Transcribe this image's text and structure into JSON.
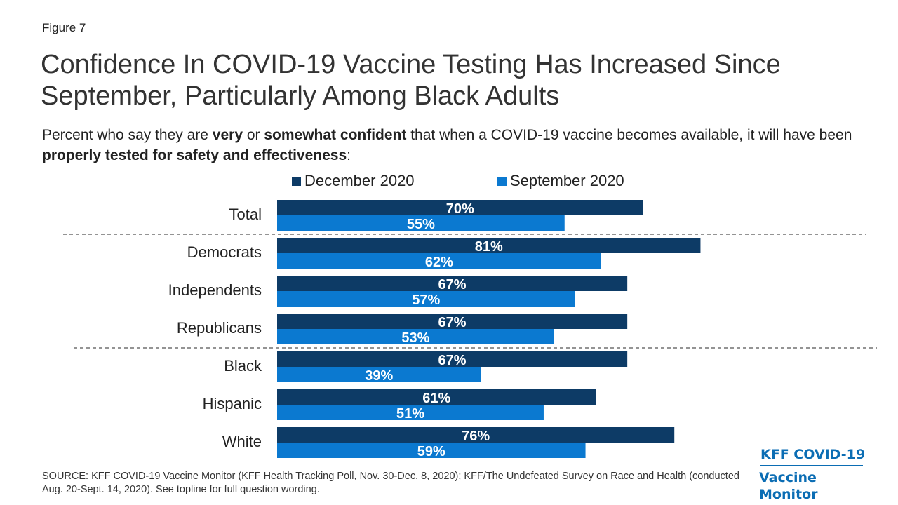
{
  "figure_label": "Figure 7",
  "title": "Confidence In COVID-19 Vaccine Testing Has Increased Since September, Particularly Among Black Adults",
  "subtitle": {
    "p1": "Percent who say they are ",
    "b1": "very",
    "p2": " or ",
    "b2": "somewhat confident",
    "p3": " that when a COVID-19 vaccine becomes available, it will have been ",
    "b3": "properly tested for safety and effectiveness",
    "p4": ":"
  },
  "colors": {
    "december": "#0d3b66",
    "september": "#0b79d0",
    "divider": "#555555"
  },
  "chart_data": {
    "type": "bar",
    "orientation": "horizontal",
    "categories": [
      "Total",
      "Democrats",
      "Independents",
      "Republicans",
      "Black",
      "Hispanic",
      "White"
    ],
    "series": [
      {
        "name": "December 2020",
        "values": [
          70,
          81,
          67,
          67,
          67,
          61,
          76
        ]
      },
      {
        "name": "September 2020",
        "values": [
          55,
          62,
          57,
          53,
          39,
          51,
          59
        ]
      }
    ],
    "value_suffix": "%",
    "xlim": [
      0,
      100
    ],
    "dividers_after": [
      "Total",
      "Republicans"
    ],
    "legend_position": "top",
    "grid": false
  },
  "source": "SOURCE: KFF COVID-19 Vaccine Monitor (KFF Health Tracking Poll, Nov. 30-Dec. 8, 2020); KFF/The Undefeated Survey on Race and Health (conducted Aug. 20-Sept. 14, 2020). See topline for full question wording.",
  "logo": {
    "line1": "KFF COVID-19",
    "line2": "Vaccine Monitor"
  }
}
